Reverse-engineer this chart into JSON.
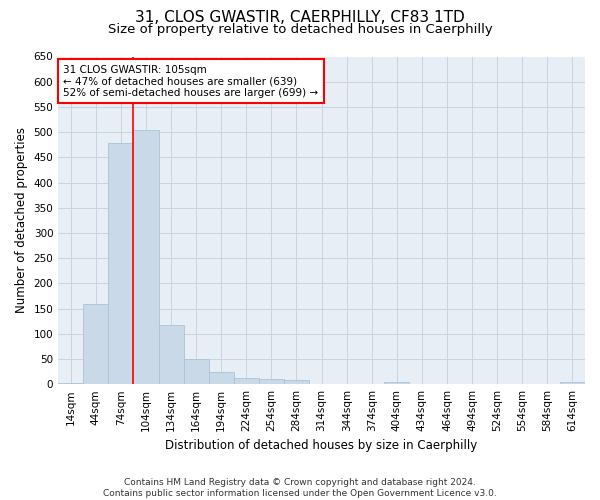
{
  "title": "31, CLOS GWASTIR, CAERPHILLY, CF83 1TD",
  "subtitle": "Size of property relative to detached houses in Caerphilly",
  "xlabel": "Distribution of detached houses by size in Caerphilly",
  "ylabel": "Number of detached properties",
  "categories": [
    "14sqm",
    "44sqm",
    "74sqm",
    "104sqm",
    "134sqm",
    "164sqm",
    "194sqm",
    "224sqm",
    "254sqm",
    "284sqm",
    "314sqm",
    "344sqm",
    "374sqm",
    "404sqm",
    "434sqm",
    "464sqm",
    "494sqm",
    "524sqm",
    "554sqm",
    "584sqm",
    "614sqm"
  ],
  "bar_values": [
    3,
    160,
    478,
    505,
    118,
    50,
    24,
    12,
    11,
    8,
    0,
    0,
    0,
    5,
    0,
    0,
    0,
    0,
    0,
    0,
    4
  ],
  "bar_color": "#c9d9e8",
  "bar_edge_color": "#a8c4d8",
  "ylim": [
    0,
    650
  ],
  "yticks": [
    0,
    50,
    100,
    150,
    200,
    250,
    300,
    350,
    400,
    450,
    500,
    550,
    600,
    650
  ],
  "red_line_x": 3,
  "annotation_text_line1": "31 CLOS GWASTIR: 105sqm",
  "annotation_text_line2": "← 47% of detached houses are smaller (639)",
  "annotation_text_line3": "52% of semi-detached houses are larger (699) →",
  "footer_line1": "Contains HM Land Registry data © Crown copyright and database right 2024.",
  "footer_line2": "Contains public sector information licensed under the Open Government Licence v3.0.",
  "background_color": "#ffffff",
  "plot_bg_color": "#e8eef5",
  "grid_color": "#c8d4e0",
  "title_fontsize": 11,
  "subtitle_fontsize": 9.5,
  "axis_label_fontsize": 8.5,
  "tick_fontsize": 7.5,
  "annotation_fontsize": 7.5,
  "footer_fontsize": 6.5
}
